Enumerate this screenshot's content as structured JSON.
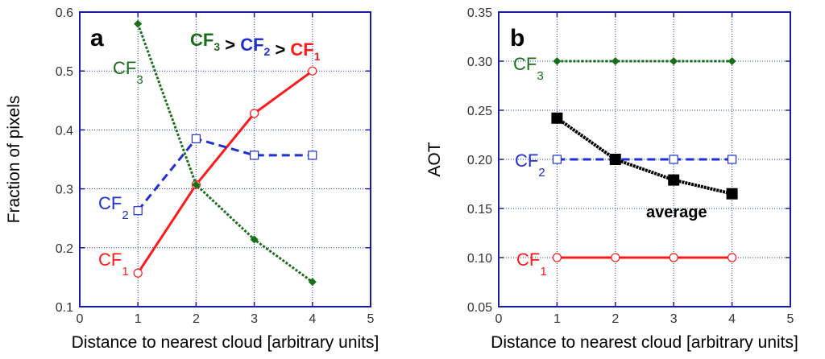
{
  "chart_data": [
    {
      "type": "line",
      "panel_label": "a",
      "xlabel": "Distance to nearest cloud [arbitrary units]",
      "ylabel": "Fraction of pixels",
      "xlim": [
        0,
        5
      ],
      "ylim": [
        0.1,
        0.6
      ],
      "xticks": [
        "0",
        "1",
        "2",
        "3",
        "4",
        "5"
      ],
      "yticks": [
        "0.1",
        "0.2",
        "0.3",
        "0.4",
        "0.5",
        "0.6"
      ],
      "grid": true,
      "x": [
        1,
        2,
        3,
        4
      ],
      "annotation": {
        "parts": [
          {
            "base": "CF",
            "sub": "3",
            "color": "#1a6e1a"
          },
          {
            "op": " > "
          },
          {
            "base": "CF",
            "sub": "2",
            "color": "#1f2fd0"
          },
          {
            "op": " > "
          },
          {
            "base": "CF",
            "sub": "1",
            "color": "#ff1a1a"
          }
        ]
      },
      "series": [
        {
          "label_base": "CF",
          "label_sub": "1",
          "color": "#ff1a1a",
          "style": "solid",
          "marker": "circle-open",
          "values": [
            0.157,
            0.307,
            0.428,
            0.5
          ]
        },
        {
          "label_base": "CF",
          "label_sub": "2",
          "color": "#1f2fd0",
          "style": "dashed",
          "marker": "square-open",
          "values": [
            0.263,
            0.385,
            0.357,
            0.357
          ]
        },
        {
          "label_base": "CF",
          "label_sub": "3",
          "color": "#1a6e1a",
          "style": "dotted",
          "marker": "diamond-filled",
          "values": [
            0.58,
            0.307,
            0.214,
            0.142
          ]
        }
      ]
    },
    {
      "type": "line",
      "panel_label": "b",
      "xlabel": "Distance to nearest cloud [arbitrary units]",
      "ylabel": "AOT",
      "xlim": [
        0,
        5
      ],
      "ylim": [
        0.05,
        0.35
      ],
      "xticks": [
        "0",
        "1",
        "2",
        "3",
        "4",
        "5"
      ],
      "yticks": [
        "0.05",
        "0.10",
        "0.15",
        "0.20",
        "0.25",
        "0.30",
        "0.35"
      ],
      "grid": true,
      "x": [
        1,
        2,
        3,
        4
      ],
      "series": [
        {
          "label_base": "CF",
          "label_sub": "1",
          "color": "#ff1a1a",
          "style": "solid",
          "marker": "circle-open",
          "values": [
            0.1,
            0.1,
            0.1,
            0.1
          ]
        },
        {
          "label_base": "CF",
          "label_sub": "2",
          "color": "#1f2fd0",
          "style": "dashed",
          "marker": "square-open",
          "values": [
            0.2,
            0.2,
            0.2,
            0.2
          ]
        },
        {
          "label_base": "CF",
          "label_sub": "3",
          "color": "#1a6e1a",
          "style": "dotted",
          "marker": "diamond-filled",
          "values": [
            0.3,
            0.3,
            0.3,
            0.3
          ]
        },
        {
          "label": "average",
          "color": "#000000",
          "style": "stepped",
          "marker": "square-filled",
          "values": [
            0.242,
            0.2,
            0.179,
            0.165
          ]
        }
      ]
    }
  ]
}
